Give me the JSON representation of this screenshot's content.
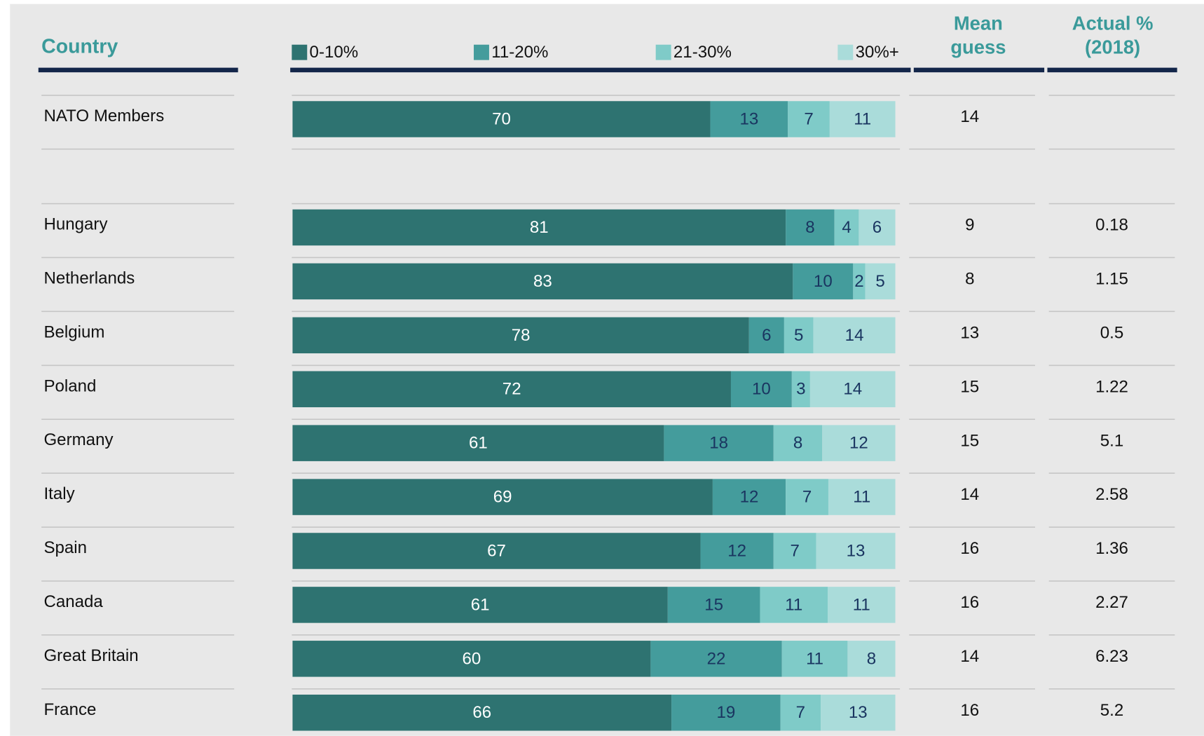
{
  "chart_data": {
    "type": "bar",
    "headers": {
      "country": "Country",
      "mean": [
        "Mean",
        "guess"
      ],
      "actual": [
        "Actual %",
        "(2018)"
      ]
    },
    "categories": [
      "NATO Members",
      "Hungary",
      "Netherlands",
      "Belgium",
      "Poland",
      "Germany",
      "Italy",
      "Spain",
      "Canada",
      "Great Britain",
      "France"
    ],
    "series": [
      {
        "name": "0-10%",
        "color": "#2e7371",
        "values": [
          70,
          81,
          83,
          78,
          72,
          61,
          69,
          67,
          61,
          60,
          66
        ]
      },
      {
        "name": "11-20%",
        "color": "#449c9c",
        "values": [
          13,
          8,
          10,
          6,
          10,
          18,
          12,
          12,
          15,
          22,
          19
        ]
      },
      {
        "name": "21-30%",
        "color": "#7fcbc8",
        "values": [
          7,
          4,
          2,
          5,
          3,
          8,
          7,
          7,
          11,
          11,
          7
        ]
      },
      {
        "name": "30%+",
        "color": "#aadcda",
        "values": [
          11,
          6,
          5,
          14,
          14,
          12,
          11,
          13,
          11,
          8,
          13
        ]
      }
    ],
    "mean_guess": [
      14,
      9,
      8,
      13,
      15,
      15,
      14,
      16,
      16,
      14,
      16
    ],
    "actual": [
      null,
      0.18,
      1.15,
      0.5,
      1.22,
      5.1,
      2.58,
      1.36,
      2.27,
      6.23,
      5.2
    ]
  }
}
